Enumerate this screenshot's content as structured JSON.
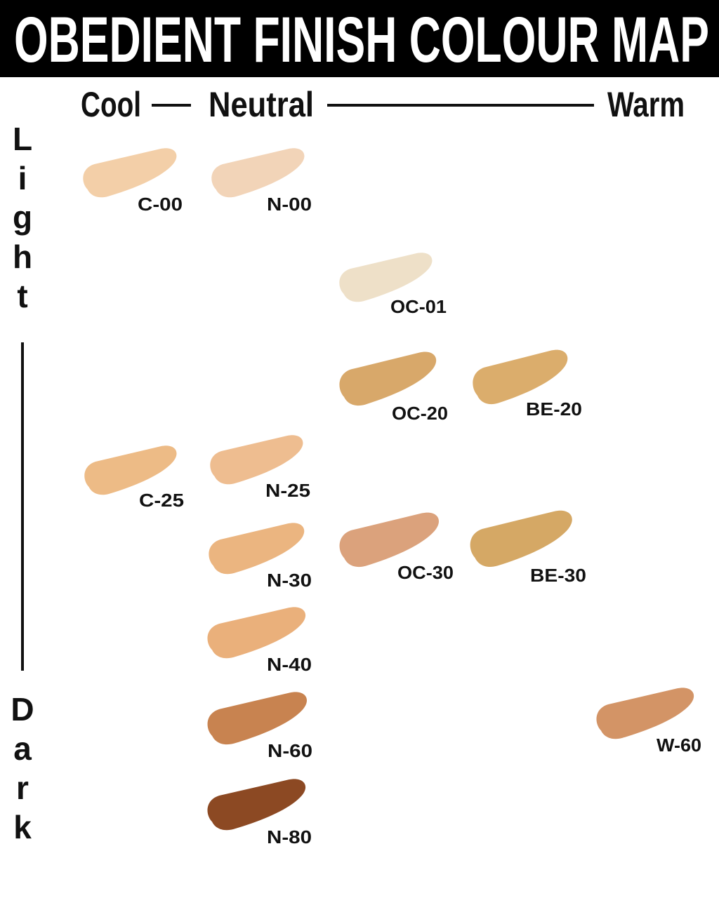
{
  "header": {
    "title": "OBEDIENT FINISH COLOUR MAP"
  },
  "axes": {
    "undertone": [
      "Cool",
      "Neutral",
      "Warm"
    ],
    "depth": [
      "Light",
      "Dark"
    ]
  },
  "swatches": [
    {
      "label": "C-00",
      "color": "#f3cfa8"
    },
    {
      "label": "N-00",
      "color": "#f2d4b8"
    },
    {
      "label": "OC-01",
      "color": "#eee0c8"
    },
    {
      "label": "OC-20",
      "color": "#d8a86a"
    },
    {
      "label": "BE-20",
      "color": "#dbad6c"
    },
    {
      "label": "C-25",
      "color": "#edbb86"
    },
    {
      "label": "N-25",
      "color": "#eebd90"
    },
    {
      "label": "N-30",
      "color": "#ebb580"
    },
    {
      "label": "OC-30",
      "color": "#dba27c"
    },
    {
      "label": "BE-30",
      "color": "#d5a865"
    },
    {
      "label": "N-40",
      "color": "#eab07b"
    },
    {
      "label": "N-60",
      "color": "#c88350"
    },
    {
      "label": "W-60",
      "color": "#d39466"
    },
    {
      "label": "N-80",
      "color": "#8c4923"
    }
  ]
}
